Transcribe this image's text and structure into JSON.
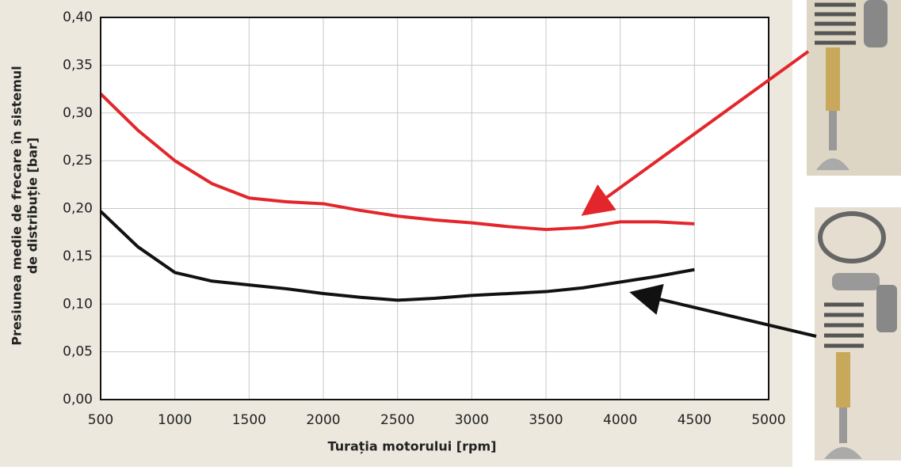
{
  "chart_data": {
    "type": "line",
    "x_label": "Turația motorului  [rpm]",
    "y_label": [
      "Presiunea medie de frecare în sistemul",
      "de distribuție  [bar]"
    ],
    "x": [
      500,
      750,
      1000,
      1250,
      1500,
      1750,
      2000,
      2250,
      2500,
      2750,
      3000,
      3250,
      3500,
      3750,
      4000,
      4250,
      4500
    ],
    "series": [
      {
        "color": "#e3262b",
        "values": [
          0.32,
          0.282,
          0.25,
          0.226,
          0.211,
          0.207,
          0.205,
          0.198,
          0.192,
          0.188,
          0.185,
          0.181,
          0.178,
          0.18,
          0.186,
          0.186,
          0.184
        ]
      },
      {
        "color": "#111111",
        "values": [
          0.197,
          0.16,
          0.133,
          0.124,
          0.12,
          0.116,
          0.111,
          0.107,
          0.104,
          0.106,
          0.109,
          0.111,
          0.113,
          0.117,
          0.123,
          0.129,
          0.136
        ]
      }
    ],
    "xlim": [
      500,
      5000
    ],
    "xticks": [
      500,
      1000,
      1500,
      2000,
      2500,
      3000,
      3500,
      4000,
      4500,
      5000
    ],
    "ylim": [
      0,
      0.4
    ],
    "yticks": [
      {
        "value": 0,
        "label": "0,00"
      },
      {
        "value": 0.05,
        "label": "0,05"
      },
      {
        "value": 0.1,
        "label": "0,10"
      },
      {
        "value": 0.15,
        "label": "0,15"
      },
      {
        "value": 0.2,
        "label": "0,20"
      },
      {
        "value": 0.25,
        "label": "0,25"
      },
      {
        "value": 0.3,
        "label": "0,30"
      },
      {
        "value": 0.35,
        "label": "0,35"
      },
      {
        "value": 0.4,
        "label": "0,40"
      }
    ],
    "grid": true
  }
}
